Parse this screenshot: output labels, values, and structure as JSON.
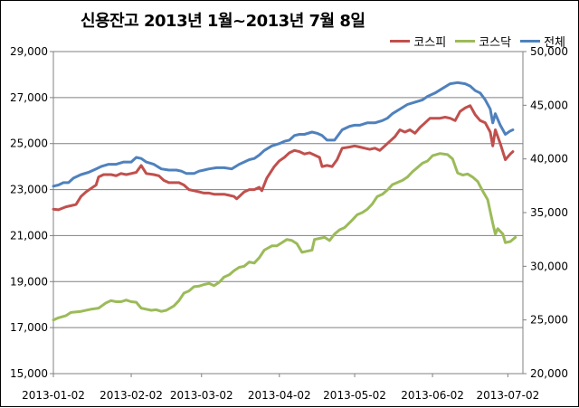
{
  "chart_data": {
    "type": "line",
    "title": "신용잔고  2013년 1월~2013년 7월 8일",
    "x_ticks": [
      "2013-01-02",
      "2013-02-02",
      "2013-03-02",
      "2013-04-02",
      "2013-05-02",
      "2013-06-02",
      "2013-07-02"
    ],
    "x_range": [
      "2013-01-02",
      "2013-07-08"
    ],
    "y_left": {
      "ticks": [
        "15,000",
        "17,000",
        "19,000",
        "21,000",
        "23,000",
        "25,000",
        "27,000",
        "29,000"
      ],
      "range": [
        15000,
        29000
      ]
    },
    "y_right": {
      "ticks": [
        "20,000",
        "25,000",
        "30,000",
        "35,000",
        "40,000",
        "45,000",
        "50,000"
      ],
      "range": [
        20000,
        50000
      ]
    },
    "grid": true,
    "legend_position": "top-right",
    "series": [
      {
        "name": "코스피",
        "color": "#c0504d",
        "axis": "left",
        "points": [
          [
            "2013-01-02",
            22150
          ],
          [
            "2013-01-04",
            22120
          ],
          [
            "2013-01-07",
            22250
          ],
          [
            "2013-01-09",
            22300
          ],
          [
            "2013-01-11",
            22350
          ],
          [
            "2013-01-13",
            22700
          ],
          [
            "2013-01-15",
            22900
          ],
          [
            "2013-01-17",
            23050
          ],
          [
            "2013-01-19",
            23200
          ],
          [
            "2013-01-20",
            23550
          ],
          [
            "2013-01-22",
            23650
          ],
          [
            "2013-01-25",
            23650
          ],
          [
            "2013-01-27",
            23600
          ],
          [
            "2013-01-29",
            23700
          ],
          [
            "2013-01-31",
            23650
          ],
          [
            "2013-02-02",
            23700
          ],
          [
            "2013-02-04",
            23750
          ],
          [
            "2013-02-06",
            24050
          ],
          [
            "2013-02-08",
            23700
          ],
          [
            "2013-02-11",
            23650
          ],
          [
            "2013-02-13",
            23600
          ],
          [
            "2013-02-15",
            23400
          ],
          [
            "2013-02-17",
            23300
          ],
          [
            "2013-02-19",
            23300
          ],
          [
            "2013-02-21",
            23300
          ],
          [
            "2013-02-23",
            23200
          ],
          [
            "2013-02-25",
            23000
          ],
          [
            "2013-02-27",
            22950
          ],
          [
            "2013-03-01",
            22900
          ],
          [
            "2013-03-03",
            22850
          ],
          [
            "2013-03-05",
            22850
          ],
          [
            "2013-03-07",
            22800
          ],
          [
            "2013-03-09",
            22800
          ],
          [
            "2013-03-11",
            22800
          ],
          [
            "2013-03-13",
            22750
          ],
          [
            "2013-03-15",
            22700
          ],
          [
            "2013-03-16",
            22600
          ],
          [
            "2013-03-17",
            22700
          ],
          [
            "2013-03-19",
            22900
          ],
          [
            "2013-03-21",
            23000
          ],
          [
            "2013-03-23",
            23000
          ],
          [
            "2013-03-25",
            23100
          ],
          [
            "2013-03-26",
            22950
          ],
          [
            "2013-03-28",
            23500
          ],
          [
            "2013-03-31",
            24000
          ],
          [
            "2013-04-02",
            24250
          ],
          [
            "2013-04-04",
            24400
          ],
          [
            "2013-04-06",
            24600
          ],
          [
            "2013-04-08",
            24700
          ],
          [
            "2013-04-10",
            24650
          ],
          [
            "2013-04-12",
            24550
          ],
          [
            "2013-04-14",
            24600
          ],
          [
            "2013-04-16",
            24500
          ],
          [
            "2013-04-18",
            24400
          ],
          [
            "2013-04-19",
            24000
          ],
          [
            "2013-04-21",
            24050
          ],
          [
            "2013-04-23",
            24000
          ],
          [
            "2013-04-25",
            24300
          ],
          [
            "2013-04-27",
            24800
          ],
          [
            "2013-04-30",
            24850
          ],
          [
            "2013-05-02",
            24900
          ],
          [
            "2013-05-04",
            24850
          ],
          [
            "2013-05-06",
            24800
          ],
          [
            "2013-05-08",
            24750
          ],
          [
            "2013-05-10",
            24800
          ],
          [
            "2013-05-12",
            24700
          ],
          [
            "2013-05-14",
            24900
          ],
          [
            "2013-05-16",
            25100
          ],
          [
            "2013-05-18",
            25300
          ],
          [
            "2013-05-20",
            25600
          ],
          [
            "2013-05-22",
            25500
          ],
          [
            "2013-05-24",
            25600
          ],
          [
            "2013-05-26",
            25450
          ],
          [
            "2013-05-28",
            25700
          ],
          [
            "2013-05-30",
            25900
          ],
          [
            "2013-06-01",
            26100
          ],
          [
            "2013-06-03",
            26100
          ],
          [
            "2013-06-05",
            26100
          ],
          [
            "2013-06-07",
            26150
          ],
          [
            "2013-06-09",
            26100
          ],
          [
            "2013-06-11",
            26000
          ],
          [
            "2013-06-13",
            26400
          ],
          [
            "2013-06-15",
            26550
          ],
          [
            "2013-06-17",
            26650
          ],
          [
            "2013-06-19",
            26250
          ],
          [
            "2013-06-21",
            26000
          ],
          [
            "2013-06-23",
            25900
          ],
          [
            "2013-06-25",
            25500
          ],
          [
            "2013-06-26",
            24900
          ],
          [
            "2013-06-27",
            25600
          ],
          [
            "2013-06-29",
            25000
          ],
          [
            "2013-07-01",
            24300
          ],
          [
            "2013-07-03",
            24550
          ],
          [
            "2013-07-04",
            24650
          ]
        ]
      },
      {
        "name": "코스닥",
        "color": "#9bbb59",
        "axis": "right",
        "points": [
          [
            "2013-01-02",
            25000
          ],
          [
            "2013-01-04",
            25200
          ],
          [
            "2013-01-07",
            25400
          ],
          [
            "2013-01-09",
            25700
          ],
          [
            "2013-01-13",
            25800
          ],
          [
            "2013-01-17",
            26000
          ],
          [
            "2013-01-20",
            26100
          ],
          [
            "2013-01-23",
            26600
          ],
          [
            "2013-01-25",
            26800
          ],
          [
            "2013-01-27",
            26700
          ],
          [
            "2013-01-29",
            26700
          ],
          [
            "2013-01-31",
            26850
          ],
          [
            "2013-02-02",
            26700
          ],
          [
            "2013-02-04",
            26650
          ],
          [
            "2013-02-06",
            26100
          ],
          [
            "2013-02-08",
            26000
          ],
          [
            "2013-02-10",
            25900
          ],
          [
            "2013-02-12",
            25950
          ],
          [
            "2013-02-14",
            25800
          ],
          [
            "2013-02-16",
            25900
          ],
          [
            "2013-02-19",
            26300
          ],
          [
            "2013-02-21",
            26800
          ],
          [
            "2013-02-23",
            27500
          ],
          [
            "2013-02-25",
            27700
          ],
          [
            "2013-02-27",
            28100
          ],
          [
            "2013-03-01",
            28150
          ],
          [
            "2013-03-03",
            28300
          ],
          [
            "2013-03-05",
            28400
          ],
          [
            "2013-03-07",
            28200
          ],
          [
            "2013-03-09",
            28500
          ],
          [
            "2013-03-11",
            29000
          ],
          [
            "2013-03-13",
            29200
          ],
          [
            "2013-03-15",
            29600
          ],
          [
            "2013-03-17",
            29900
          ],
          [
            "2013-03-19",
            30000
          ],
          [
            "2013-03-21",
            30400
          ],
          [
            "2013-03-23",
            30300
          ],
          [
            "2013-03-25",
            30800
          ],
          [
            "2013-03-27",
            31500
          ],
          [
            "2013-03-30",
            31900
          ],
          [
            "2013-04-01",
            31900
          ],
          [
            "2013-04-03",
            32200
          ],
          [
            "2013-04-05",
            32500
          ],
          [
            "2013-04-07",
            32400
          ],
          [
            "2013-04-09",
            32100
          ],
          [
            "2013-04-11",
            31300
          ],
          [
            "2013-04-13",
            31400
          ],
          [
            "2013-04-15",
            31500
          ],
          [
            "2013-04-16",
            32500
          ],
          [
            "2013-04-18",
            32600
          ],
          [
            "2013-04-20",
            32700
          ],
          [
            "2013-04-22",
            32400
          ],
          [
            "2013-04-24",
            33000
          ],
          [
            "2013-04-26",
            33400
          ],
          [
            "2013-04-28",
            33600
          ],
          [
            "2013-05-01",
            34300
          ],
          [
            "2013-05-03",
            34800
          ],
          [
            "2013-05-05",
            35000
          ],
          [
            "2013-05-07",
            35300
          ],
          [
            "2013-05-09",
            35800
          ],
          [
            "2013-05-11",
            36500
          ],
          [
            "2013-05-13",
            36700
          ],
          [
            "2013-05-15",
            37100
          ],
          [
            "2013-05-17",
            37600
          ],
          [
            "2013-05-19",
            37800
          ],
          [
            "2013-05-21",
            38000
          ],
          [
            "2013-05-23",
            38300
          ],
          [
            "2013-05-25",
            38800
          ],
          [
            "2013-05-27",
            39200
          ],
          [
            "2013-05-29",
            39600
          ],
          [
            "2013-05-31",
            39800
          ],
          [
            "2013-06-02",
            40300
          ],
          [
            "2013-06-05",
            40500
          ],
          [
            "2013-06-08",
            40400
          ],
          [
            "2013-06-10",
            40000
          ],
          [
            "2013-06-12",
            38700
          ],
          [
            "2013-06-14",
            38500
          ],
          [
            "2013-06-16",
            38600
          ],
          [
            "2013-06-18",
            38300
          ],
          [
            "2013-06-20",
            37900
          ],
          [
            "2013-06-22",
            37000
          ],
          [
            "2013-06-24",
            36200
          ],
          [
            "2013-06-26",
            34000
          ],
          [
            "2013-06-27",
            33000
          ],
          [
            "2013-06-28",
            33500
          ],
          [
            "2013-06-30",
            33000
          ],
          [
            "2013-07-01",
            32200
          ],
          [
            "2013-07-03",
            32300
          ],
          [
            "2013-07-05",
            32700
          ]
        ]
      },
      {
        "name": "전체",
        "color": "#4f81bd",
        "axis": "left",
        "points": [
          [
            "2013-01-02",
            23150
          ],
          [
            "2013-01-04",
            23200
          ],
          [
            "2013-01-06",
            23300
          ],
          [
            "2013-01-08",
            23300
          ],
          [
            "2013-01-10",
            23500
          ],
          [
            "2013-01-13",
            23650
          ],
          [
            "2013-01-16",
            23750
          ],
          [
            "2013-01-19",
            23900
          ],
          [
            "2013-01-21",
            24000
          ],
          [
            "2013-01-24",
            24100
          ],
          [
            "2013-01-27",
            24100
          ],
          [
            "2013-01-30",
            24200
          ],
          [
            "2013-02-02",
            24200
          ],
          [
            "2013-02-04",
            24400
          ],
          [
            "2013-02-06",
            24350
          ],
          [
            "2013-02-08",
            24200
          ],
          [
            "2013-02-11",
            24100
          ],
          [
            "2013-02-14",
            23900
          ],
          [
            "2013-02-17",
            23850
          ],
          [
            "2013-02-20",
            23850
          ],
          [
            "2013-02-22",
            23800
          ],
          [
            "2013-02-24",
            23700
          ],
          [
            "2013-02-27",
            23700
          ],
          [
            "2013-03-01",
            23800
          ],
          [
            "2013-03-03",
            23850
          ],
          [
            "2013-03-05",
            23900
          ],
          [
            "2013-03-08",
            23950
          ],
          [
            "2013-03-11",
            23950
          ],
          [
            "2013-03-14",
            23900
          ],
          [
            "2013-03-17",
            24100
          ],
          [
            "2013-03-19",
            24200
          ],
          [
            "2013-03-21",
            24300
          ],
          [
            "2013-03-23",
            24350
          ],
          [
            "2013-03-25",
            24500
          ],
          [
            "2013-03-27",
            24700
          ],
          [
            "2013-03-30",
            24900
          ],
          [
            "2013-04-02",
            25000
          ],
          [
            "2013-04-04",
            25100
          ],
          [
            "2013-04-06",
            25150
          ],
          [
            "2013-04-08",
            25350
          ],
          [
            "2013-04-10",
            25400
          ],
          [
            "2013-04-12",
            25400
          ],
          [
            "2013-04-15",
            25500
          ],
          [
            "2013-04-17",
            25450
          ],
          [
            "2013-04-19",
            25350
          ],
          [
            "2013-04-21",
            25150
          ],
          [
            "2013-04-24",
            25150
          ],
          [
            "2013-04-27",
            25600
          ],
          [
            "2013-04-30",
            25750
          ],
          [
            "2013-05-02",
            25800
          ],
          [
            "2013-05-04",
            25800
          ],
          [
            "2013-05-07",
            25900
          ],
          [
            "2013-05-10",
            25900
          ],
          [
            "2013-05-13",
            26000
          ],
          [
            "2013-05-15",
            26100
          ],
          [
            "2013-05-17",
            26300
          ],
          [
            "2013-05-20",
            26500
          ],
          [
            "2013-05-23",
            26700
          ],
          [
            "2013-05-26",
            26800
          ],
          [
            "2013-05-29",
            26900
          ],
          [
            "2013-05-31",
            27050
          ],
          [
            "2013-06-03",
            27200
          ],
          [
            "2013-06-06",
            27400
          ],
          [
            "2013-06-09",
            27600
          ],
          [
            "2013-06-12",
            27650
          ],
          [
            "2013-06-15",
            27600
          ],
          [
            "2013-06-17",
            27500
          ],
          [
            "2013-06-19",
            27300
          ],
          [
            "2013-06-21",
            27200
          ],
          [
            "2013-06-23",
            26900
          ],
          [
            "2013-06-25",
            26500
          ],
          [
            "2013-06-26",
            25900
          ],
          [
            "2013-06-27",
            26300
          ],
          [
            "2013-06-29",
            25800
          ],
          [
            "2013-07-01",
            25400
          ],
          [
            "2013-07-03",
            25550
          ],
          [
            "2013-07-04",
            25600
          ]
        ]
      }
    ]
  }
}
